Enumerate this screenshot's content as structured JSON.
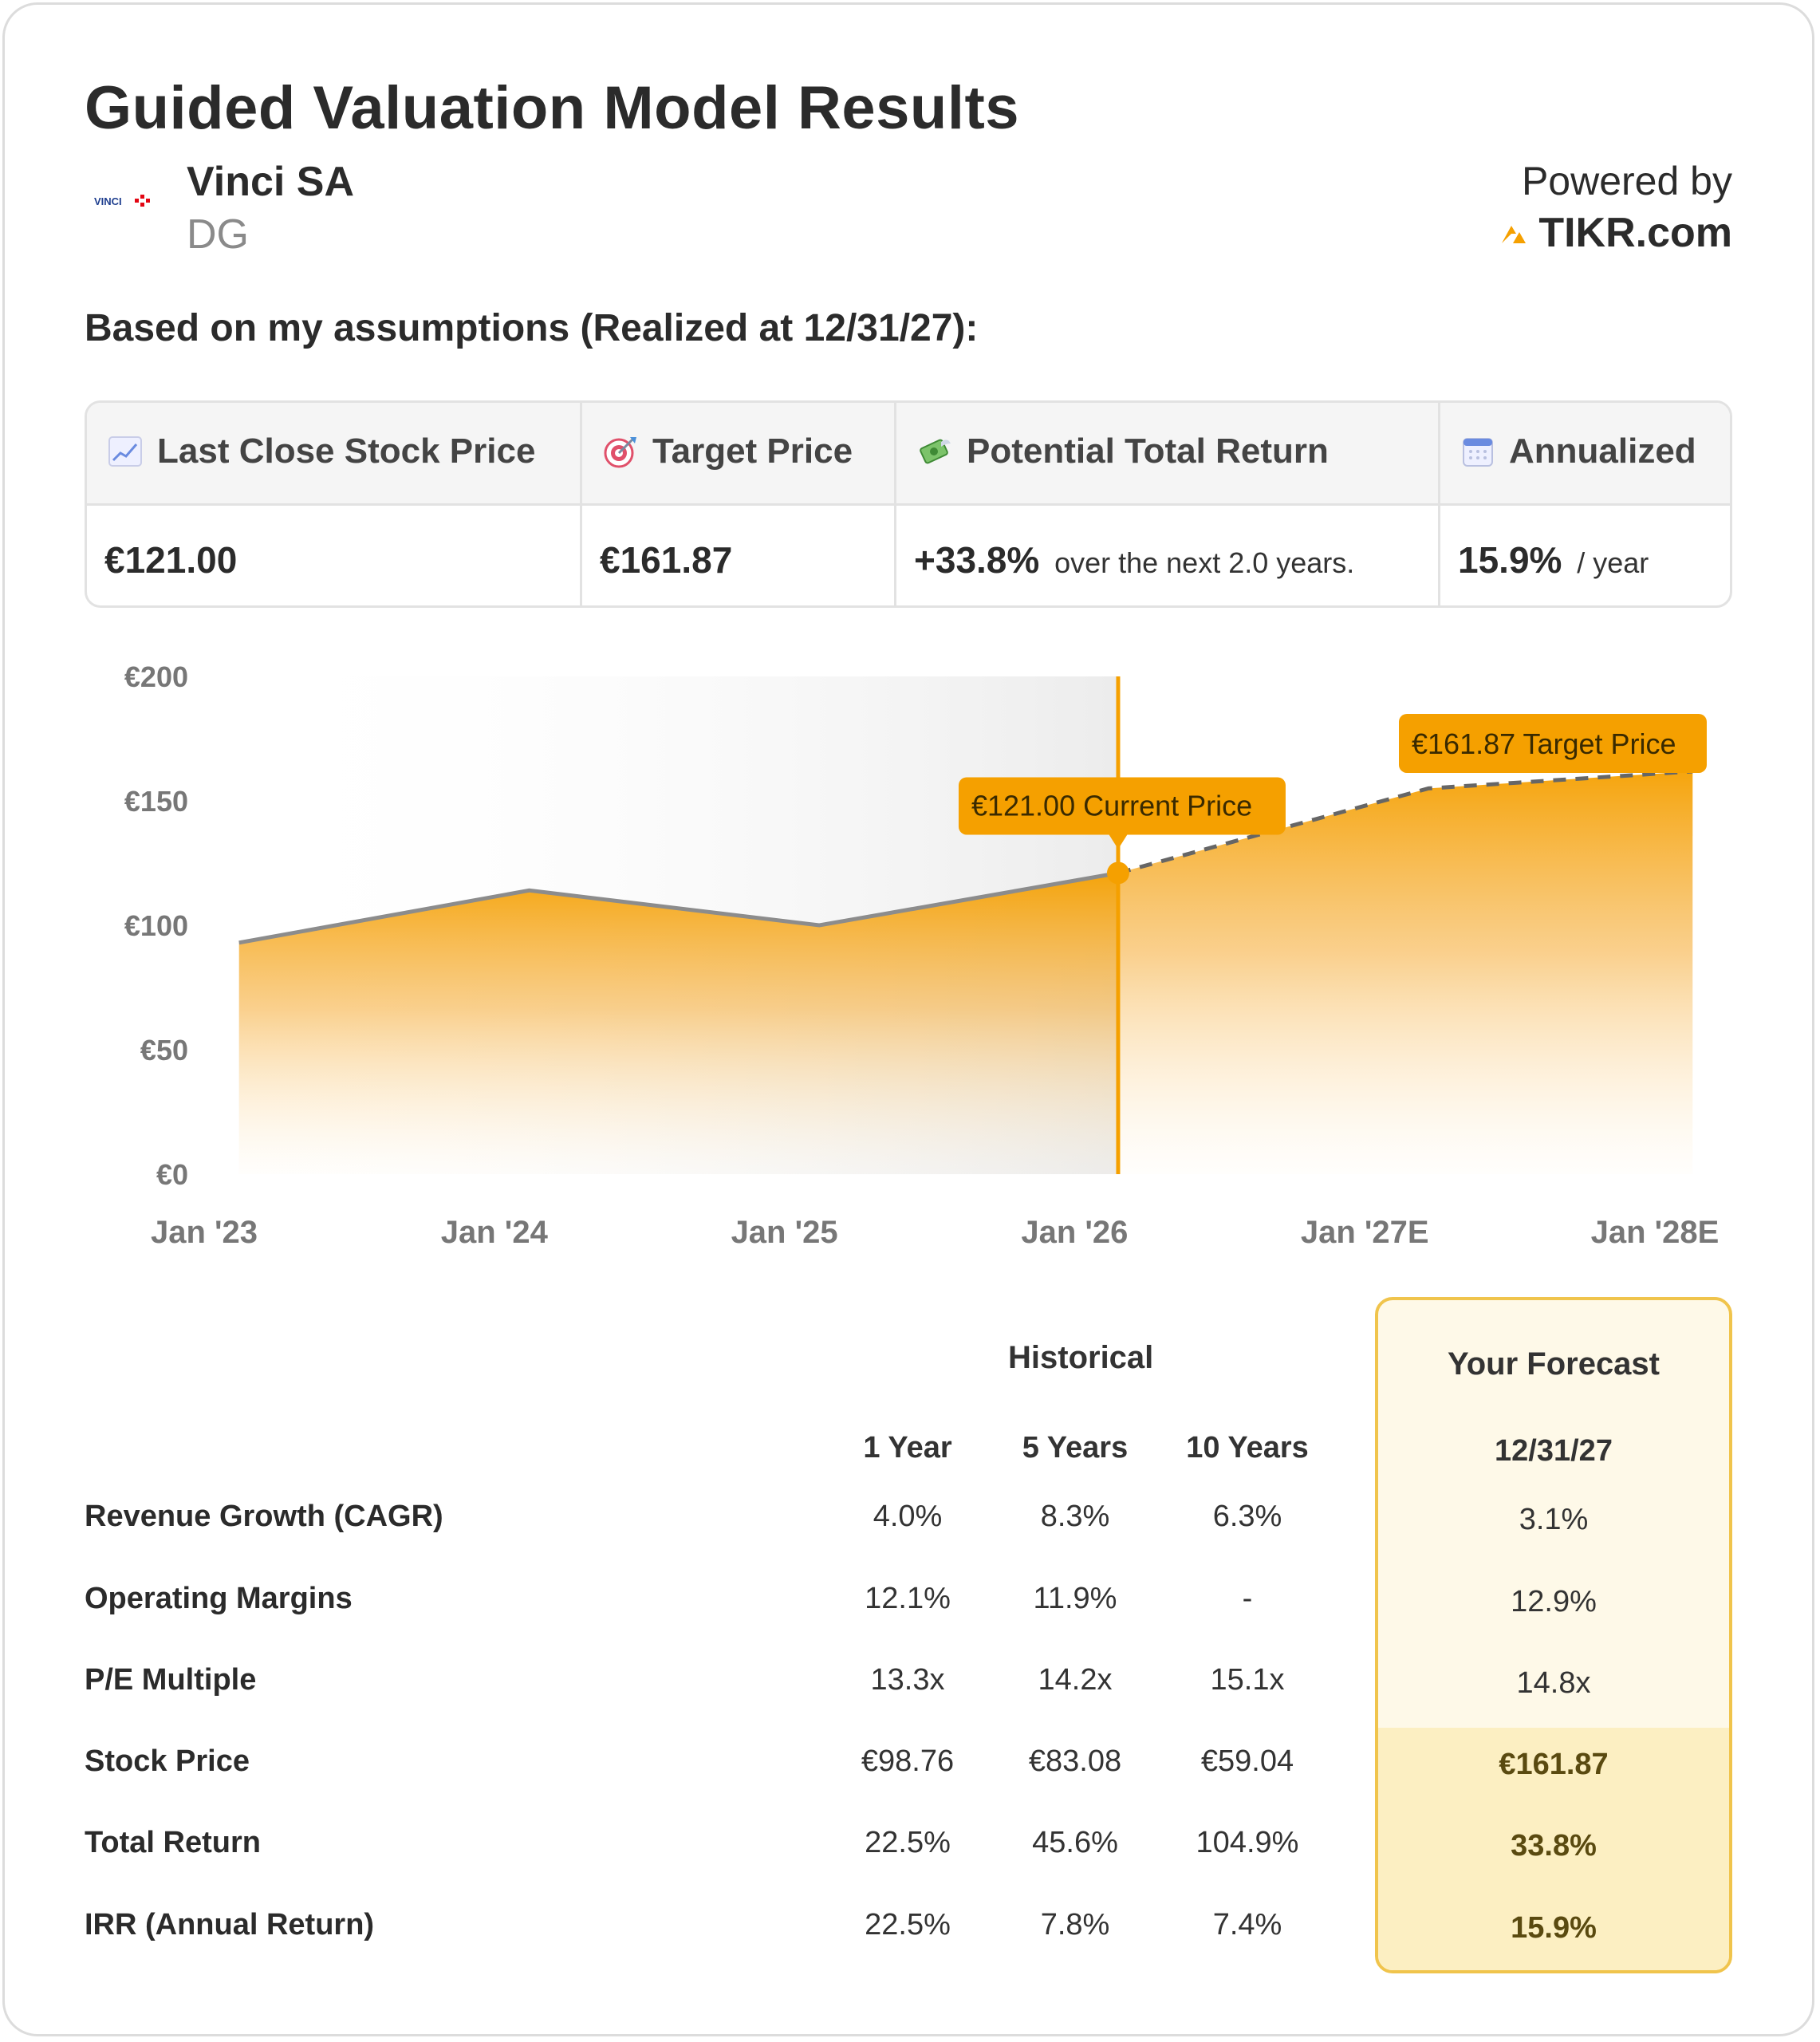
{
  "header": {
    "title": "Guided Valuation Model Results",
    "company_name": "Vinci SA",
    "ticker": "DG",
    "logo_text": "VINCI",
    "powered_by": "Powered by",
    "brand": "TIKR.com"
  },
  "subheading": "Based on my assumptions (Realized at 12/31/27):",
  "summary": {
    "last_close": {
      "label": "Last Close Stock Price",
      "icon": "chart-increasing-icon",
      "value": "€121.00"
    },
    "target": {
      "label": "Target Price",
      "icon": "target-icon",
      "value": "€161.87"
    },
    "total_return": {
      "label": "Potential Total Return",
      "icon": "money-with-wings-icon",
      "value": "+33.8%",
      "note": "over the next 2.0 years."
    },
    "annualized": {
      "label": "Annualized",
      "icon": "calendar-icon",
      "value": "15.9%",
      "note": "/ year"
    }
  },
  "chart_data": {
    "type": "area",
    "y_ticks": [
      "€200",
      "€150",
      "€100",
      "€50",
      "€0"
    ],
    "ylim": [
      0,
      200
    ],
    "x_ticks": [
      "Jan '23",
      "Jan '24",
      "Jan '25",
      "Jan '26",
      "Jan '27E",
      "Jan '28E"
    ],
    "historical": {
      "x": [
        2023.12,
        2024.12,
        2025.12,
        2026.15
      ],
      "y": [
        93,
        114,
        100,
        121
      ]
    },
    "forecast": {
      "x": [
        2026.15,
        2027.22,
        2028.13
      ],
      "y": [
        121,
        155,
        161.87
      ]
    },
    "current_label": "€121.00 Current Price",
    "target_label": "€161.87 Target Price",
    "colors": {
      "accent": "#f5a000",
      "line": "#8c8c8c",
      "history_bg": "#f2f2f2"
    }
  },
  "table": {
    "historical_label": "Historical",
    "forecast_label": "Your Forecast",
    "columns": [
      "1 Year",
      "5 Years",
      "10 Years"
    ],
    "forecast_date": "12/31/27",
    "rows": [
      {
        "label": "Revenue Growth (CAGR)",
        "values": [
          "4.0%",
          "8.3%",
          "6.3%"
        ],
        "forecast": "3.1%"
      },
      {
        "label": "Operating Margins",
        "values": [
          "12.1%",
          "11.9%",
          "-"
        ],
        "forecast": "12.9%"
      },
      {
        "label": "P/E Multiple",
        "values": [
          "13.3x",
          "14.2x",
          "15.1x"
        ],
        "forecast": "14.8x"
      },
      {
        "label": "Stock Price",
        "values": [
          "€98.76",
          "€83.08",
          "€59.04"
        ],
        "forecast": "€161.87"
      },
      {
        "label": "Total Return",
        "values": [
          "22.5%",
          "45.6%",
          "104.9%"
        ],
        "forecast": "33.8%"
      },
      {
        "label": "IRR (Annual Return)",
        "values": [
          "22.5%",
          "7.8%",
          "7.4%"
        ],
        "forecast": "15.9%"
      }
    ]
  }
}
